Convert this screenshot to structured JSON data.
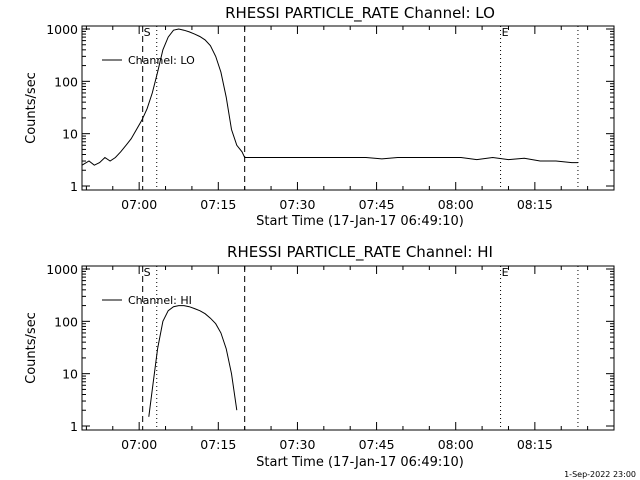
{
  "footer": "1-Sep-2022 23:00",
  "chart_data": [
    {
      "type": "line",
      "title": "RHESSI PARTICLE_RATE Channel: LO",
      "xlabel": "Start Time (17-Jan-17 06:49:10)",
      "ylabel": "Counts/sec",
      "yscale": "log",
      "ylim": [
        1,
        1000
      ],
      "xlim": [
        "06:49:10",
        "08:30:00"
      ],
      "xticks": [
        "07:00",
        "07:15",
        "07:30",
        "07:45",
        "08:00",
        "08:15"
      ],
      "yticks": [
        "1",
        "10",
        "100",
        "1000"
      ],
      "legend": {
        "position": "top-left",
        "entries": [
          "Channel: LO"
        ]
      },
      "markers": [
        {
          "label": "S",
          "time": "07:00:40",
          "style": "dashed"
        },
        {
          "label": "",
          "time": "07:03:20",
          "style": "dotted"
        },
        {
          "label": "",
          "time": "07:20:00",
          "style": "dashed"
        },
        {
          "label": "E",
          "time": "08:08:30",
          "style": "dotted"
        },
        {
          "label": "",
          "time": "08:23:10",
          "style": "dotted"
        }
      ],
      "series": [
        {
          "name": "Channel: LO",
          "x": [
            "06:49:10",
            "06:50:30",
            "06:51:30",
            "06:52:30",
            "06:53:30",
            "06:54:30",
            "06:55:30",
            "06:56:30",
            "06:57:30",
            "06:58:30",
            "06:59:30",
            "07:00:30",
            "07:01:30",
            "07:02:30",
            "07:03:30",
            "07:04:30",
            "07:05:30",
            "07:06:30",
            "07:07:30",
            "07:08:30",
            "07:09:30",
            "07:10:30",
            "07:11:30",
            "07:12:30",
            "07:13:30",
            "07:14:30",
            "07:15:30",
            "07:16:30",
            "07:17:30",
            "07:18:30",
            "07:19:30",
            "07:20:00",
            "07:22:00",
            "07:25:00",
            "07:28:00",
            "07:31:00",
            "07:34:00",
            "07:37:00",
            "07:40:00",
            "07:43:00",
            "07:46:00",
            "07:49:00",
            "07:52:00",
            "07:55:00",
            "07:58:00",
            "08:01:00",
            "08:04:00",
            "08:07:00",
            "08:10:00",
            "08:13:00",
            "08:16:00",
            "08:19:00",
            "08:22:00",
            "08:23:10"
          ],
          "values": [
            2.5,
            3,
            2.5,
            2.8,
            3.5,
            3,
            3.5,
            4.5,
            6,
            8,
            12,
            18,
            30,
            60,
            150,
            400,
            700,
            950,
            1000,
            950,
            880,
            800,
            720,
            620,
            480,
            300,
            150,
            50,
            12,
            6,
            4.5,
            3.5,
            3.5,
            3.5,
            3.5,
            3.5,
            3.5,
            3.5,
            3.5,
            3.5,
            3.3,
            3.5,
            3.5,
            3.5,
            3.5,
            3.5,
            3.2,
            3.5,
            3.2,
            3.4,
            3,
            3,
            2.8,
            2.8
          ]
        }
      ]
    },
    {
      "type": "line",
      "title": "RHESSI PARTICLE_RATE Channel: HI",
      "xlabel": "Start Time (17-Jan-17 06:49:10)",
      "ylabel": "Counts/sec",
      "yscale": "log",
      "ylim": [
        1,
        1000
      ],
      "xlim": [
        "06:49:10",
        "08:30:00"
      ],
      "xticks": [
        "07:00",
        "07:15",
        "07:30",
        "07:45",
        "08:00",
        "08:15"
      ],
      "yticks": [
        "1",
        "10",
        "100",
        "1000"
      ],
      "legend": {
        "position": "top-left",
        "entries": [
          "Channel: HI"
        ]
      },
      "markers": [
        {
          "label": "S",
          "time": "07:00:40",
          "style": "dashed"
        },
        {
          "label": "",
          "time": "07:03:20",
          "style": "dotted"
        },
        {
          "label": "",
          "time": "07:20:00",
          "style": "dashed"
        },
        {
          "label": "E",
          "time": "08:08:30",
          "style": "dotted"
        },
        {
          "label": "",
          "time": "08:23:10",
          "style": "dotted"
        }
      ],
      "series": [
        {
          "name": "Channel: HI",
          "x": [
            "07:01:50",
            "07:02:30",
            "07:03:30",
            "07:04:30",
            "07:05:30",
            "07:06:30",
            "07:07:30",
            "07:08:30",
            "07:09:30",
            "07:10:30",
            "07:11:30",
            "07:12:30",
            "07:13:30",
            "07:14:30",
            "07:15:30",
            "07:16:30",
            "07:17:30",
            "07:18:30"
          ],
          "values": [
            1.5,
            5,
            30,
            100,
            160,
            190,
            200,
            200,
            190,
            175,
            160,
            140,
            115,
            90,
            60,
            30,
            10,
            2
          ]
        }
      ]
    }
  ]
}
